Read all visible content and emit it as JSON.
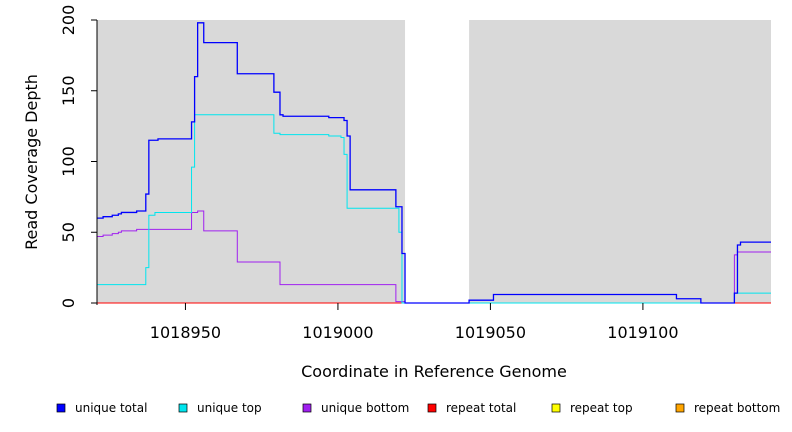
{
  "chart_data": {
    "type": "line",
    "xlabel": "Coordinate in Reference Genome",
    "ylabel": "Read Coverage Depth",
    "xlim": [
      1018921,
      1019142
    ],
    "ylim": [
      0,
      200
    ],
    "x_ticks": [
      1018950,
      1019000,
      1019050,
      1019100
    ],
    "y_ticks": [
      0,
      50,
      100,
      150,
      200
    ],
    "grid": false,
    "background": "#d9d9d9",
    "gap_region": [
      1019022,
      1019043
    ],
    "legend_position": "bottom",
    "series": [
      {
        "name": "unique total",
        "color": "#0000ff",
        "width": 1.3,
        "points": [
          [
            1018921,
            60
          ],
          [
            1018923,
            61
          ],
          [
            1018926,
            62
          ],
          [
            1018928,
            63
          ],
          [
            1018929,
            64
          ],
          [
            1018934,
            65
          ],
          [
            1018937,
            77
          ],
          [
            1018938,
            115
          ],
          [
            1018941,
            116
          ],
          [
            1018952,
            128
          ],
          [
            1018953,
            160
          ],
          [
            1018954,
            198
          ],
          [
            1018956,
            184
          ],
          [
            1018967,
            162
          ],
          [
            1018979,
            149
          ],
          [
            1018981,
            133
          ],
          [
            1018982,
            132
          ],
          [
            1018997,
            131
          ],
          [
            1019002,
            129
          ],
          [
            1019003,
            118
          ],
          [
            1019004,
            80
          ],
          [
            1019019,
            68
          ],
          [
            1019021,
            35
          ],
          [
            1019022,
            0
          ],
          [
            1019043,
            2
          ],
          [
            1019051,
            6
          ],
          [
            1019111,
            3
          ],
          [
            1019119,
            0
          ],
          [
            1019130,
            7
          ],
          [
            1019131,
            41
          ],
          [
            1019132,
            43
          ],
          [
            1019142,
            43
          ]
        ]
      },
      {
        "name": "unique top",
        "color": "#00e5ee",
        "width": 1,
        "points": [
          [
            1018921,
            13
          ],
          [
            1018937,
            25
          ],
          [
            1018938,
            62
          ],
          [
            1018940,
            64
          ],
          [
            1018952,
            96
          ],
          [
            1018953,
            133
          ],
          [
            1018979,
            120
          ],
          [
            1018981,
            119
          ],
          [
            1018997,
            118
          ],
          [
            1019001,
            117
          ],
          [
            1019002,
            105
          ],
          [
            1019003,
            67
          ],
          [
            1019020,
            50
          ],
          [
            1019021,
            0
          ],
          [
            1019130,
            7
          ],
          [
            1019142,
            7
          ]
        ]
      },
      {
        "name": "unique bottom",
        "color": "#a020f0",
        "width": 1,
        "points": [
          [
            1018921,
            47
          ],
          [
            1018923,
            48
          ],
          [
            1018926,
            49
          ],
          [
            1018928,
            50
          ],
          [
            1018929,
            51
          ],
          [
            1018934,
            52
          ],
          [
            1018952,
            64
          ],
          [
            1018954,
            65
          ],
          [
            1018956,
            51
          ],
          [
            1018967,
            29
          ],
          [
            1018981,
            13
          ],
          [
            1019019,
            1
          ],
          [
            1019022,
            0
          ],
          [
            1019130,
            34
          ],
          [
            1019131,
            36
          ],
          [
            1019142,
            36
          ]
        ]
      },
      {
        "name": "repeat total",
        "color": "#ff0000",
        "width": 1,
        "points": [
          [
            1018921,
            0
          ],
          [
            1019142,
            0
          ]
        ]
      },
      {
        "name": "repeat top",
        "color": "#ffff00",
        "width": 1,
        "points": [
          [
            1018921,
            0
          ],
          [
            1019142,
            0
          ]
        ]
      },
      {
        "name": "repeat bottom",
        "color": "#ffa500",
        "width": 1,
        "points": [
          [
            1018921,
            0
          ],
          [
            1019142,
            0
          ]
        ]
      }
    ]
  }
}
